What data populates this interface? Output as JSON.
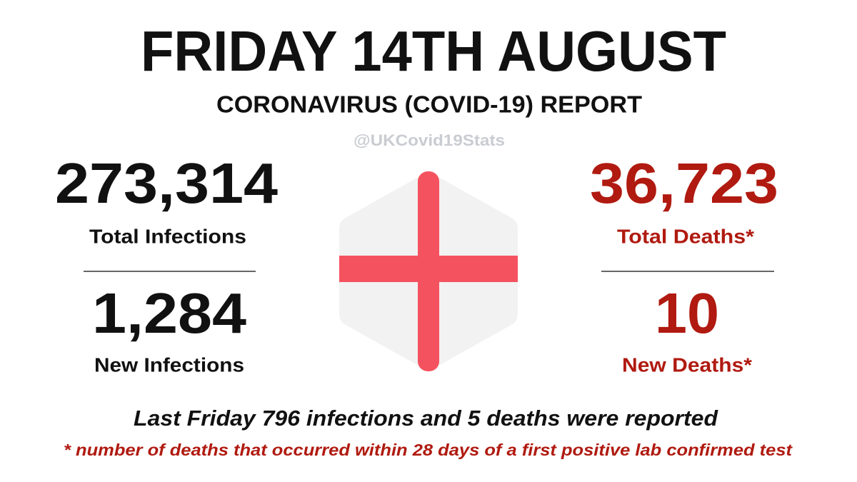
{
  "header": {
    "title": "FRIDAY 14TH AUGUST",
    "subtitle": "CORONAVIRUS (COVID-19) REPORT",
    "handle": "@UKCovid19Stats"
  },
  "left": {
    "total": "273,314",
    "total_label": "Total Infections",
    "new": "1,284",
    "new_label": "New Infections"
  },
  "right": {
    "total": "36,723",
    "total_label": "Total Deaths*",
    "new": "10",
    "new_label": "New Deaths*"
  },
  "footer": {
    "comparison": "Last Friday 796 infections and 5 deaths were reported",
    "note": "* number of deaths that occurred within 28 days of a first positive lab confirmed test"
  }
}
